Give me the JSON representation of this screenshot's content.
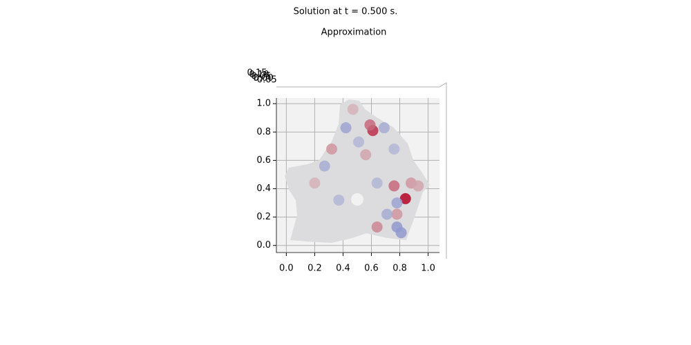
{
  "chart_data": {
    "type": "surface",
    "title": "Solution at t = 0.500 s.",
    "subtitle": "Approximation",
    "xlim": [
      -0.07,
      1.08
    ],
    "ylim": [
      -0.05,
      1.04
    ],
    "zlim": [
      -0.05,
      0.15
    ],
    "xticks": [
      {
        "value": 0,
        "label": "0.0"
      },
      0.2,
      0.4,
      0.6,
      0.8,
      {
        "value": 1,
        "label": "1.0"
      }
    ],
    "yticks": [
      {
        "value": 0,
        "label": "0.0"
      },
      0.2,
      0.4,
      0.6,
      0.8,
      {
        "value": 1,
        "label": "1.0"
      }
    ],
    "zticks": [
      -0.05,
      {
        "value": 0,
        "label": "0.00"
      },
      0.05,
      {
        "value": 0.1,
        "label": "0.10"
      },
      0.15
    ],
    "grid": true,
    "colormap": "coolwarm",
    "x": [
      0.61,
      0.59,
      0.84,
      0.76,
      0.64,
      0.32,
      0.2,
      0.47,
      0.88,
      0.93,
      0.56,
      0.78,
      0.42,
      0.78,
      0.27,
      0.78,
      0.69,
      0.76,
      0.37,
      0.64,
      0.51,
      0.81,
      0.71
    ],
    "y": [
      0.81,
      0.85,
      0.33,
      0.42,
      0.13,
      0.68,
      0.44,
      0.96,
      0.44,
      0.42,
      0.64,
      0.22,
      0.83,
      0.13,
      0.56,
      0.3,
      0.83,
      0.68,
      0.32,
      0.44,
      0.73,
      0.09,
      0.22
    ],
    "z": [
      0.12,
      0.08,
      0.15,
      0.08,
      0.06,
      0.05,
      0.03,
      0.03,
      0.05,
      0.04,
      0.04,
      0.05,
      -0.06,
      -0.07,
      -0.05,
      -0.06,
      -0.05,
      -0.04,
      -0.04,
      -0.04,
      -0.04,
      -0.07,
      -0.05
    ]
  }
}
